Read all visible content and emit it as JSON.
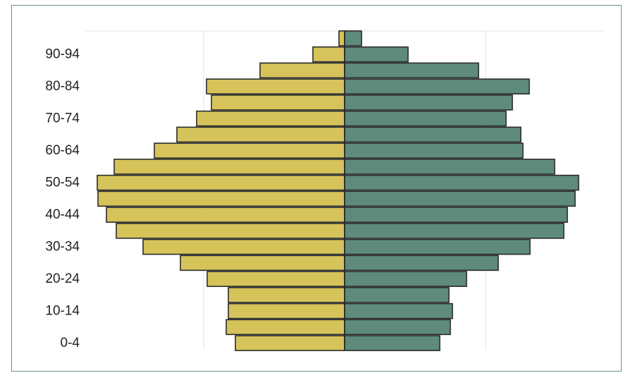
{
  "chart_data": {
    "type": "bar",
    "orientation": "horizontal",
    "subtype": "population-pyramid",
    "categories": [
      "0-4",
      "5-9",
      "10-14",
      "15-19",
      "20-24",
      "25-29",
      "30-34",
      "35-39",
      "40-44",
      "45-49",
      "50-54",
      "55-59",
      "60-64",
      "65-69",
      "70-74",
      "75-79",
      "80-84",
      "85-89",
      "90-94",
      "95+"
    ],
    "tick_labels": [
      "0-4",
      "10-14",
      "20-24",
      "30-34",
      "40-44",
      "50-54",
      "60-64",
      "70-74",
      "80-84",
      "90-94"
    ],
    "series": [
      {
        "values": [
          -155,
          -168,
          -165,
          -165,
          -195,
          -233,
          -286,
          -324,
          -338,
          -350,
          -351,
          -327,
          -270,
          -238,
          -210,
          -189,
          -196,
          -120,
          -45,
          -8
        ]
      },
      {
        "values": [
          135,
          150,
          153,
          148,
          173,
          218,
          263,
          311,
          316,
          327,
          332,
          298,
          253,
          250,
          229,
          238,
          262,
          190,
          90,
          24
        ]
      }
    ],
    "colors": [
      "#d6c35a",
      "#5e8b7d"
    ],
    "xlim": [
      -400,
      400
    ],
    "grid": true,
    "legend": "none"
  }
}
